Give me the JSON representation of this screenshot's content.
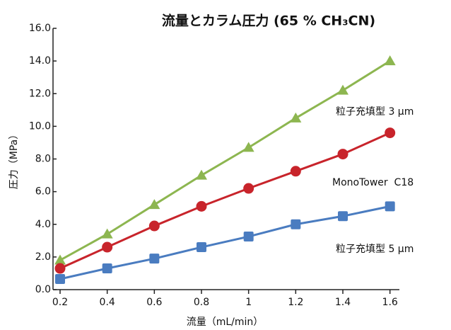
{
  "chart_data": {
    "type": "line",
    "title": "流量とカラム圧力 (65 % CH₃CN)",
    "x_label": "流量（mL/min）",
    "y_label": "圧力（MPa）",
    "x": [
      0.2,
      0.4,
      0.6,
      0.8,
      1.0,
      1.2,
      1.4,
      1.6
    ],
    "series": [
      {
        "name": "粒子充填型 3 µm",
        "color": "#8db650",
        "marker": "triangle",
        "values": [
          1.8,
          3.4,
          5.2,
          7.0,
          8.7,
          10.5,
          12.2,
          14.0
        ]
      },
      {
        "name": "MonoTower  C18",
        "color": "#c8242b",
        "marker": "circle",
        "values": [
          1.3,
          2.6,
          3.9,
          5.1,
          6.2,
          7.25,
          8.3,
          9.6
        ]
      },
      {
        "name": "粒子充填型 5 µm",
        "color": "#4a7cc0",
        "marker": "square",
        "values": [
          0.65,
          1.3,
          1.9,
          2.6,
          3.25,
          4.0,
          4.5,
          5.1
        ]
      }
    ],
    "xlim": [
      0.17,
      1.64
    ],
    "ylim": [
      0,
      16
    ],
    "xticks": [
      0.2,
      0.4,
      0.6,
      0.8,
      1.0,
      1.2,
      1.4,
      1.6
    ],
    "yticks": [
      {
        "value": 0,
        "label": "0.0"
      },
      {
        "value": 2,
        "label": "2.0"
      },
      {
        "value": 4,
        "label": "4.0"
      },
      {
        "value": 6,
        "label": "6.0"
      },
      {
        "value": 8,
        "label": "8.0"
      },
      {
        "value": 10,
        "label": "10.0"
      },
      {
        "value": 12,
        "label": "12.0"
      },
      {
        "value": 14,
        "label": "14.0"
      },
      {
        "value": 16,
        "label": "16.0"
      }
    ],
    "grid": false
  }
}
